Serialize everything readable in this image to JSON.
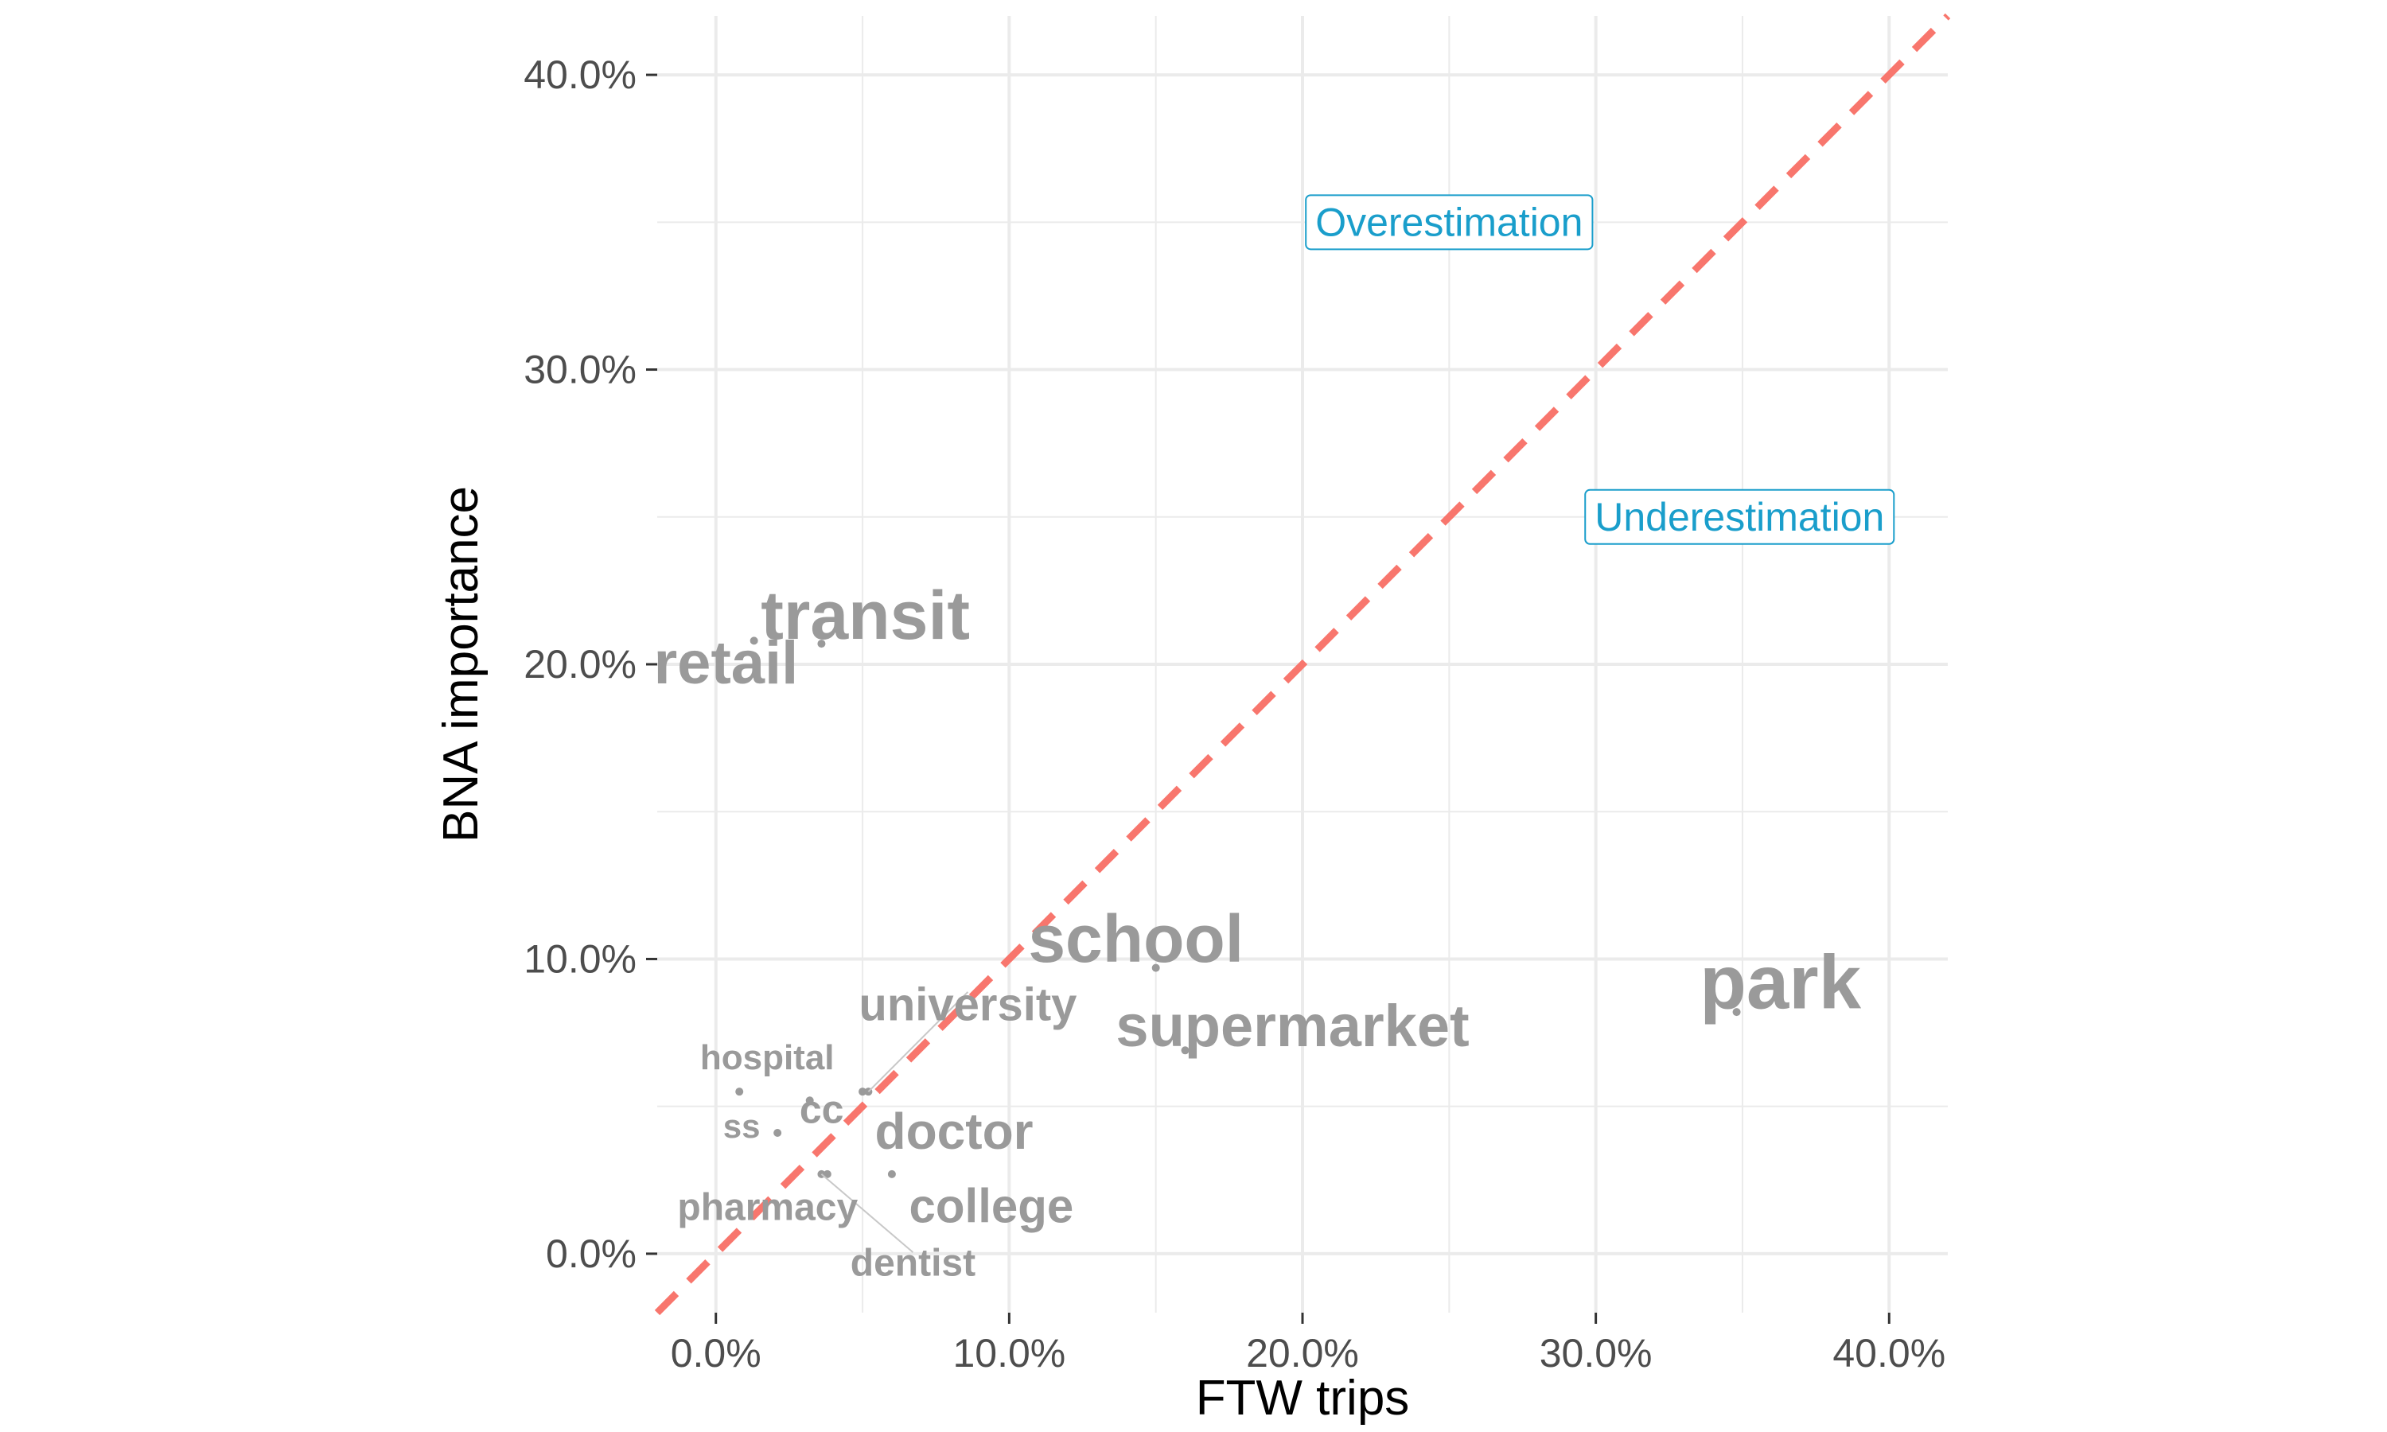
{
  "chart_data": {
    "type": "scatter",
    "title": "",
    "xlabel": "FTW trips",
    "ylabel": "BNA importance",
    "xlim": [
      -2,
      42
    ],
    "ylim": [
      -2,
      42
    ],
    "x_ticks": [
      0,
      10,
      20,
      30,
      40
    ],
    "y_ticks": [
      0,
      10,
      20,
      30,
      40
    ],
    "x_tick_labels": [
      "0.0%",
      "10.0%",
      "20.0%",
      "30.0%",
      "40.0%"
    ],
    "y_tick_labels": [
      "0.0%",
      "10.0%",
      "20.0%",
      "30.0%",
      "40.0%"
    ],
    "grid": true,
    "points": [
      {
        "label": "transit",
        "x": 1.3,
        "y": 20.8
      },
      {
        "label": "retail",
        "x": 3.6,
        "y": 20.7
      },
      {
        "label": "school",
        "x": 15.0,
        "y": 9.7
      },
      {
        "label": "park",
        "x": 34.8,
        "y": 8.2
      },
      {
        "label": "supermarket",
        "x": 16.0,
        "y": 6.9
      },
      {
        "label": "university",
        "x": 5.2,
        "y": 5.5
      },
      {
        "label": "hospital",
        "x": 0.8,
        "y": 5.5
      },
      {
        "label": "doctor",
        "x": 5.0,
        "y": 5.5
      },
      {
        "label": "ss",
        "x": 2.1,
        "y": 4.1
      },
      {
        "label": "cc",
        "x": 3.2,
        "y": 5.2
      },
      {
        "label": "pharmacy",
        "x": 3.8,
        "y": 2.7
      },
      {
        "label": "college",
        "x": 6.0,
        "y": 2.7
      },
      {
        "label": "dentist",
        "x": 3.6,
        "y": 2.7
      }
    ],
    "reference_line": {
      "type": "identity",
      "color": "#f8766d",
      "style": "dashed"
    },
    "annotations": [
      {
        "text": "Overestimation",
        "x": 25,
        "y": 35
      },
      {
        "text": "Underestimation",
        "x": 34.9,
        "y": 25
      }
    ],
    "colors": {
      "points": "#9a9a9a",
      "annotation": "#1a9ecb",
      "grid": "#ebebeb"
    }
  }
}
